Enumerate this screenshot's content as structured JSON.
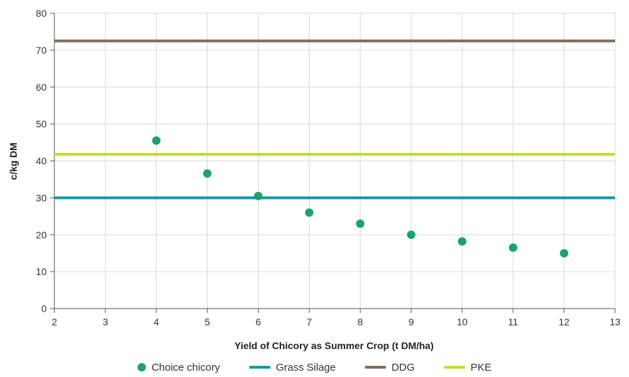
{
  "chart_data": {
    "type": "scatter",
    "xlabel": "Yield of Chicory as Summer Crop (t DM/ha)",
    "ylabel": "c/kg DM",
    "xlim": [
      2,
      13
    ],
    "ylim": [
      0,
      80
    ],
    "x_ticks": [
      "2",
      "3",
      "4",
      "5",
      "6",
      "7",
      "8",
      "9",
      "10",
      "11",
      "12",
      "13"
    ],
    "y_ticks": [
      "0",
      "10",
      "20",
      "30",
      "40",
      "50",
      "60",
      "70",
      "80"
    ],
    "grid": true,
    "legend_position": "bottom",
    "series": [
      {
        "name": "Choice chicory",
        "kind": "scatter",
        "color": "#1aa36a",
        "points": [
          {
            "x": 4,
            "y": 45.5
          },
          {
            "x": 5,
            "y": 36.6
          },
          {
            "x": 6,
            "y": 30.5
          },
          {
            "x": 7,
            "y": 26.0
          },
          {
            "x": 8,
            "y": 23.0
          },
          {
            "x": 9,
            "y": 20.0
          },
          {
            "x": 10,
            "y": 18.2
          },
          {
            "x": 11,
            "y": 16.5
          },
          {
            "x": 12,
            "y": 15.0
          }
        ]
      },
      {
        "name": "Grass Silage",
        "kind": "hline",
        "color": "#0f9aa5",
        "y": 30
      },
      {
        "name": "DDG",
        "kind": "hline",
        "color": "#7d6e58",
        "y": 72.5
      },
      {
        "name": "PKE",
        "kind": "hline",
        "color": "#c8d92e",
        "y": 41.8
      }
    ]
  }
}
